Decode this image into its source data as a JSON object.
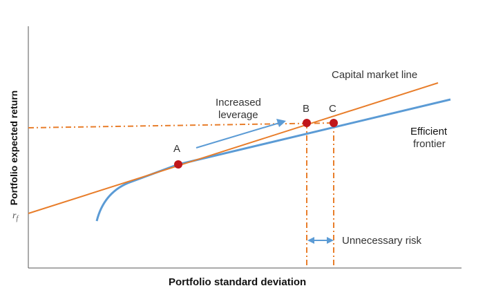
{
  "axes": {
    "x_label": "Portfolio standard deviation",
    "y_label": "Portfolio expected return",
    "rf_label": "rf"
  },
  "labels": {
    "cml": "Capital market line",
    "efficient_frontier_line1": "Efficient",
    "efficient_frontier_line2": "frontier",
    "leverage_line1": "Increased",
    "leverage_line2": "leverage",
    "unnecessary_risk": "Unnecessary risk",
    "point_a": "A",
    "point_b": "B",
    "point_c": "C"
  },
  "colors": {
    "cml": "#e87d2a",
    "frontier": "#5b9bd5",
    "points": "#c0161b",
    "axis": "#555555"
  }
}
